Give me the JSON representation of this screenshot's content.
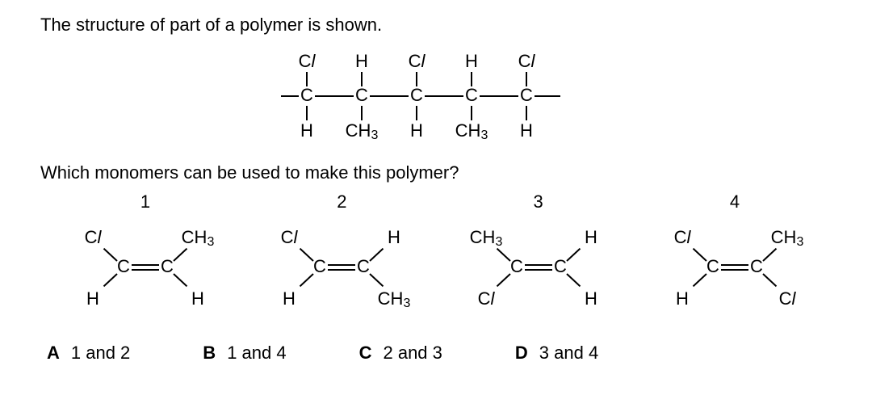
{
  "intro": "The structure of part of a polymer is shown.",
  "question": "Which monomers can be used to make this polymer?",
  "polymer": {
    "top": [
      "Cl",
      "H",
      "Cl",
      "H",
      "Cl"
    ],
    "bottom": [
      "H",
      "CH3",
      "H",
      "CH3",
      "H"
    ]
  },
  "monomers": [
    {
      "num": "1",
      "tl": "Cl",
      "tr": "CH3",
      "bl": "H",
      "br": "H"
    },
    {
      "num": "2",
      "tl": "Cl",
      "tr": "H",
      "bl": "H",
      "br": "CH3"
    },
    {
      "num": "3",
      "tl": "CH3",
      "tr": "H",
      "bl": "Cl",
      "br": "H"
    },
    {
      "num": "4",
      "tl": "Cl",
      "tr": "CH3",
      "bl": "H",
      "br": "Cl"
    }
  ],
  "answers": [
    {
      "letter": "A",
      "text": "1 and 2"
    },
    {
      "letter": "B",
      "text": "1 and 4"
    },
    {
      "letter": "C",
      "text": "2 and 3"
    },
    {
      "letter": "D",
      "text": "3 and 4"
    }
  ],
  "style": {
    "text_color": "#000000",
    "background_color": "#ffffff",
    "font_size": 22,
    "line_stroke": "#000000",
    "line_width": 2
  }
}
